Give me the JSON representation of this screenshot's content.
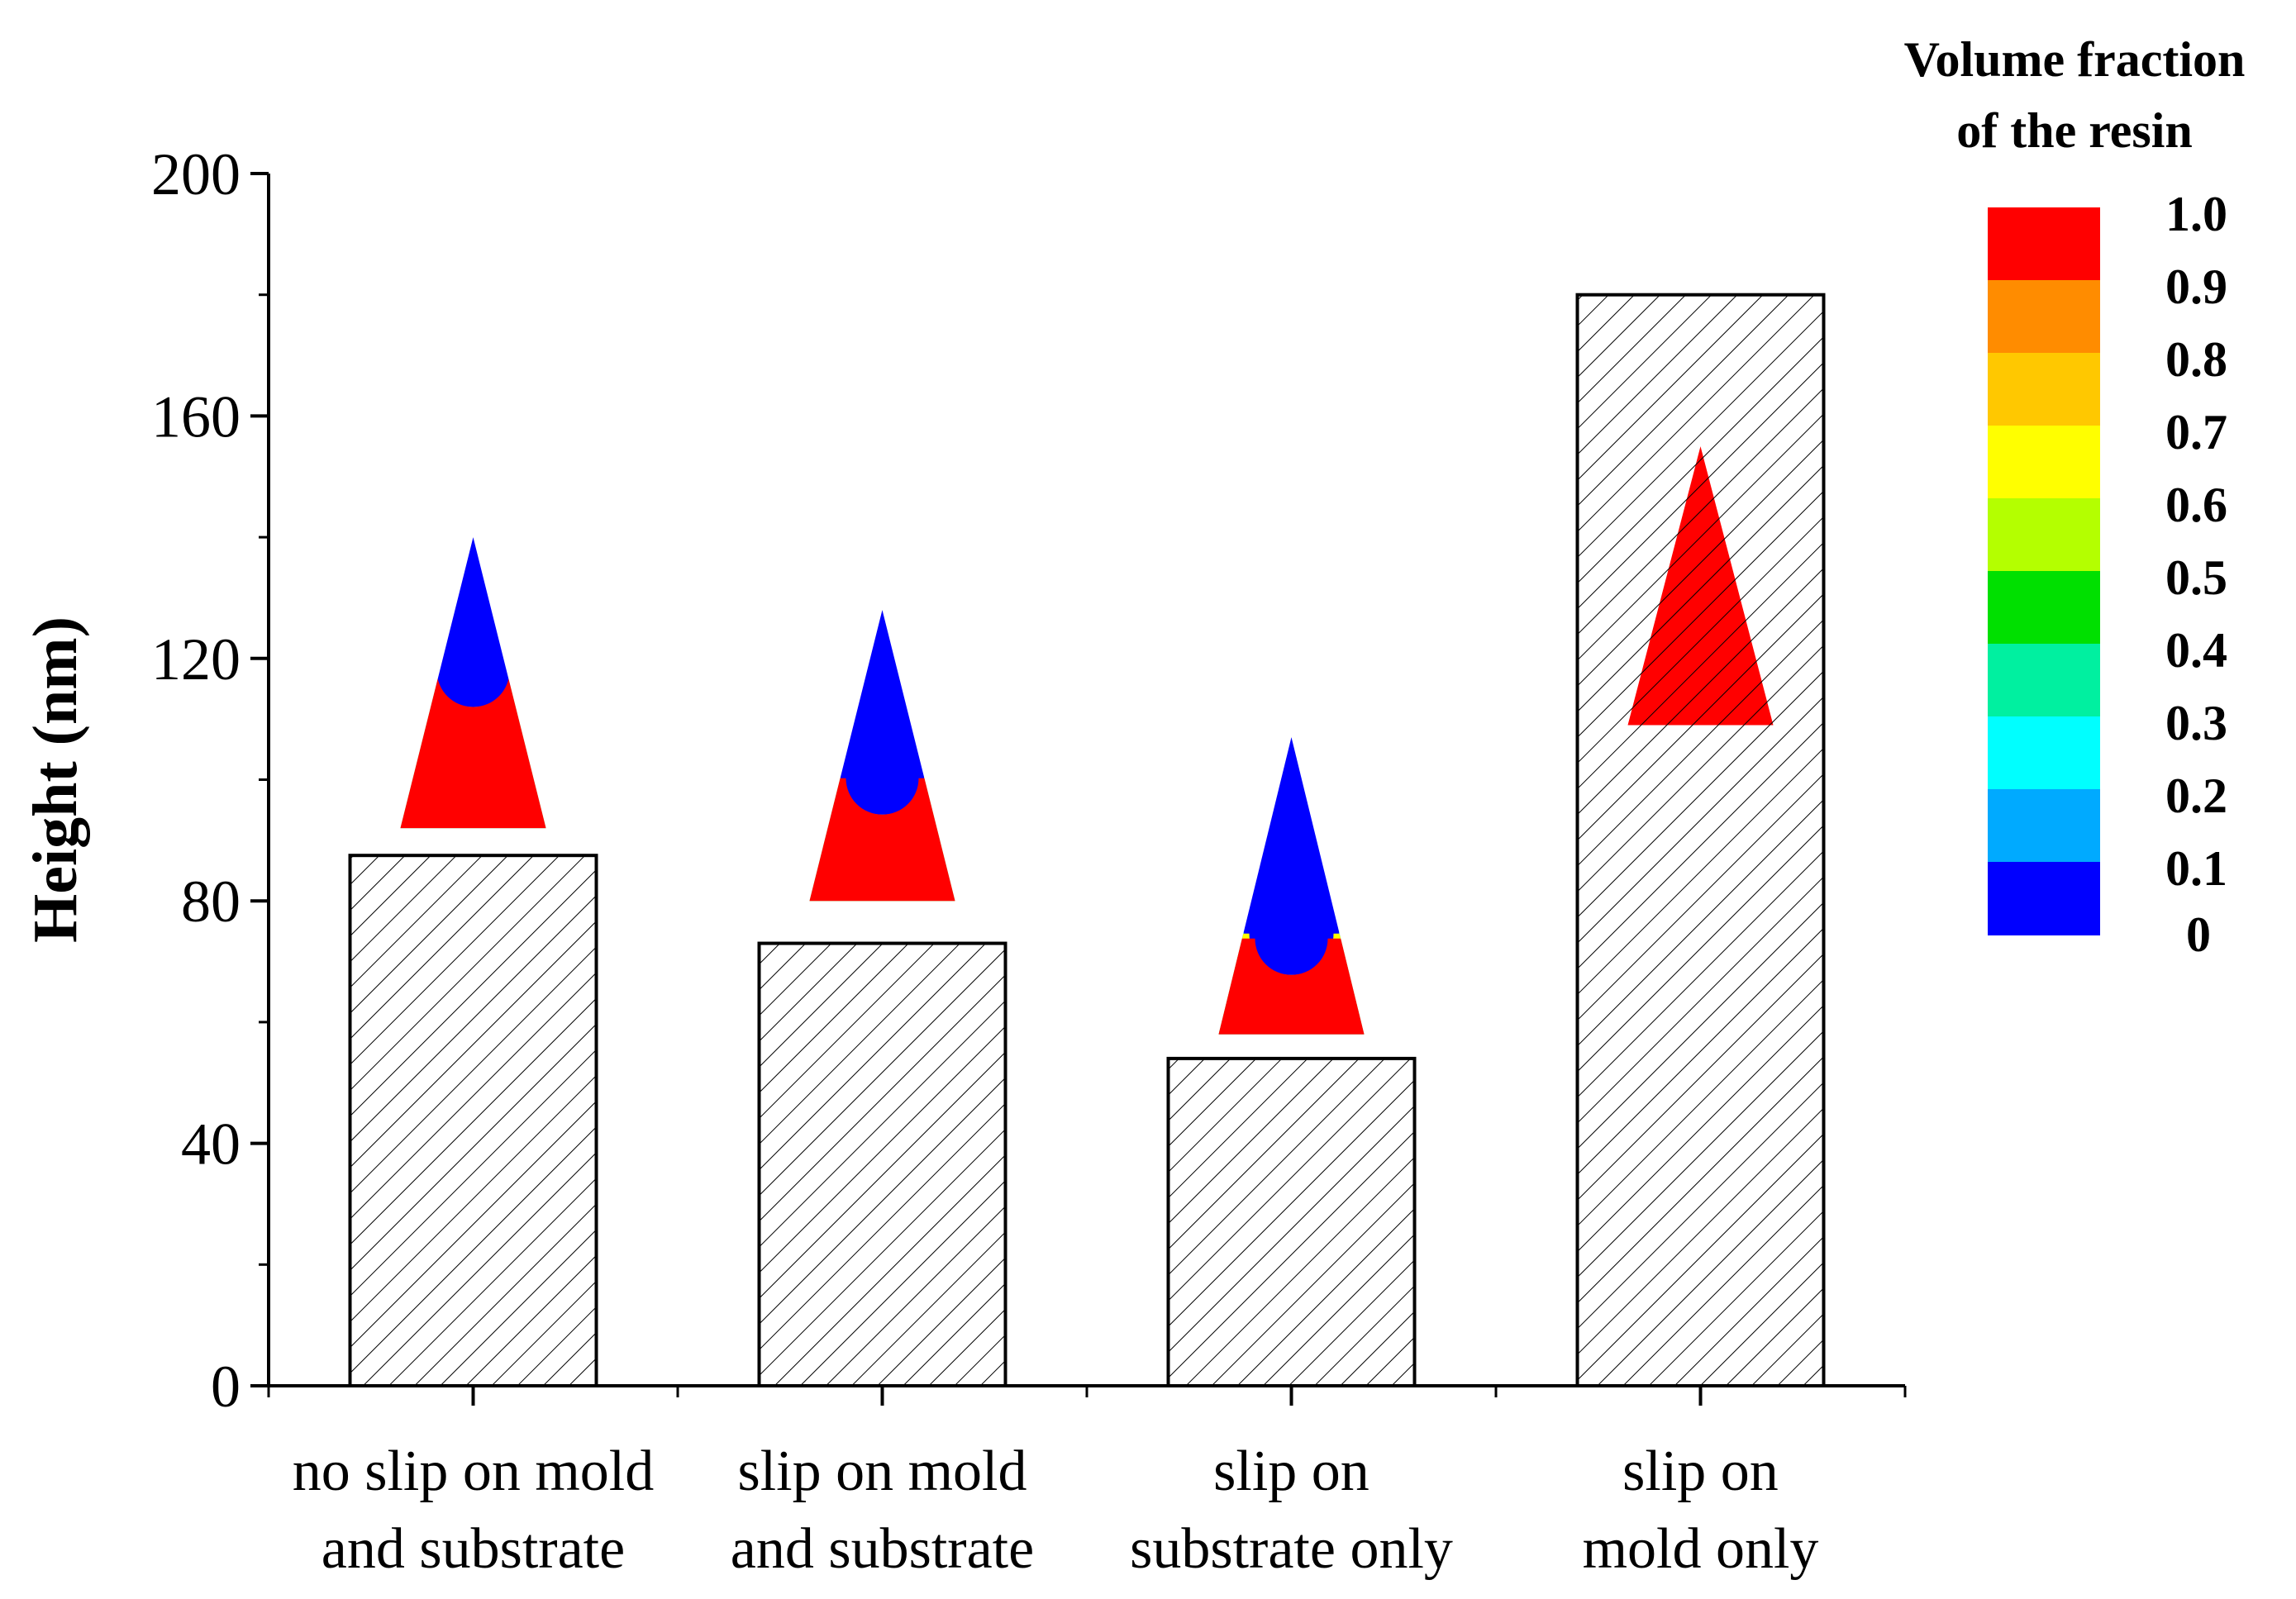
{
  "chart_data": {
    "type": "bar",
    "title": "",
    "xlabel": "",
    "ylabel": "Height (nm)",
    "ylim": [
      0,
      200
    ],
    "yticks": [
      0,
      40,
      80,
      120,
      160,
      200
    ],
    "categories": [
      [
        "no slip on mold",
        "and substrate"
      ],
      [
        "slip on mold",
        "and substrate"
      ],
      [
        "slip on",
        "substrate only"
      ],
      [
        "slip on",
        "mold only"
      ]
    ],
    "values": [
      87.5,
      73,
      54,
      180
    ],
    "bar_fill": "diagonal-hatch",
    "insets": [
      {
        "category": 0,
        "description": "resin fill profile",
        "fill_level": 0.57,
        "tip_height": 140,
        "base_height": 92
      },
      {
        "category": 1,
        "description": "resin fill profile",
        "fill_level": 0.45,
        "tip_height": 128,
        "base_height": 80
      },
      {
        "category": 2,
        "description": "resin fill profile",
        "fill_level": 0.35,
        "tip_height": 107,
        "base_height": 58
      },
      {
        "category": 3,
        "description": "resin fill profile",
        "fill_level": 1.0,
        "tip_height": 155,
        "base_height": 109
      }
    ]
  },
  "legend": {
    "title_lines": [
      "Volume fraction",
      "of the resin"
    ],
    "bands": [
      {
        "color": "#ff0000"
      },
      {
        "color": "#ff8c00"
      },
      {
        "color": "#ffc800"
      },
      {
        "color": "#ffff00"
      },
      {
        "color": "#b4ff00"
      },
      {
        "color": "#00e000"
      },
      {
        "color": "#00f0a0"
      },
      {
        "color": "#00ffff"
      },
      {
        "color": "#00aaff"
      },
      {
        "color": "#0000ff"
      }
    ],
    "labels": [
      "1.0",
      "0.9",
      "0.8",
      "0.7",
      "0.6",
      "0.5",
      "0.4",
      "0.3",
      "0.2",
      "0.1",
      "0"
    ]
  },
  "colors": {
    "resin": "#ff0000",
    "air": "#0000ff",
    "interface_outer": "#ffff00",
    "interface_mid": "#00ffff"
  }
}
